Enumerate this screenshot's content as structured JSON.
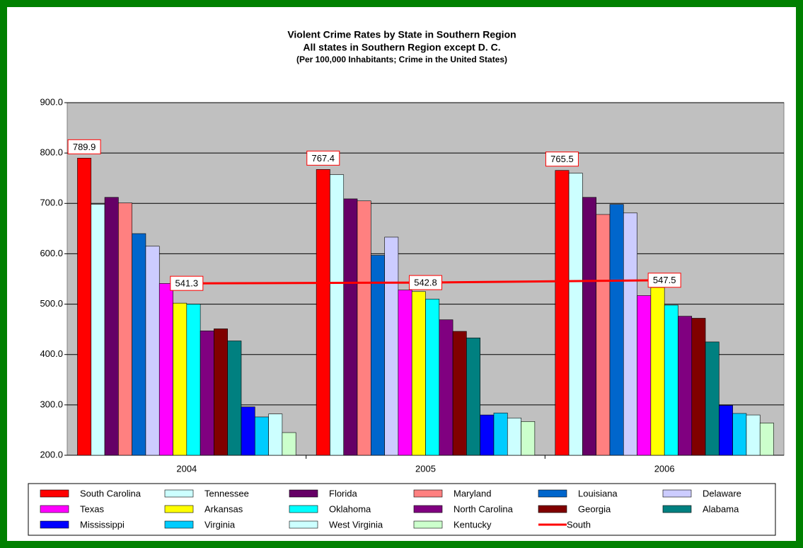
{
  "chart_data": {
    "type": "bar",
    "title": "Violent Crime Rates by State in Southern Region",
    "subtitle": "All states in Southern Region except D. C.",
    "note": "(Per 100,000 Inhabitants; Crime in the United States)",
    "categories": [
      "2004",
      "2005",
      "2006"
    ],
    "ylim": [
      200,
      900
    ],
    "yticks": [
      {
        "value": 200,
        "label": "200.0"
      },
      {
        "value": 300,
        "label": "300.0"
      },
      {
        "value": 400,
        "label": "400.0"
      },
      {
        "value": 500,
        "label": "500.0"
      },
      {
        "value": 600,
        "label": "600.0"
      },
      {
        "value": 700,
        "label": "700.0"
      },
      {
        "value": 800,
        "label": "800.0"
      },
      {
        "value": 900,
        "label": "900.0"
      }
    ],
    "grid": true,
    "legend": "bottom",
    "series": [
      {
        "name": "South Carolina",
        "color": "#ff0000",
        "values": [
          789.9,
          767.4,
          765.5
        ],
        "show_labels": true
      },
      {
        "name": "Tennessee",
        "color": "#ccffff",
        "values": [
          698,
          757,
          760
        ]
      },
      {
        "name": "Florida",
        "color": "#660066",
        "values": [
          712,
          709,
          712
        ]
      },
      {
        "name": "Maryland",
        "color": "#ff8080",
        "values": [
          701,
          705,
          678
        ]
      },
      {
        "name": "Louisiana",
        "color": "#0066cc",
        "values": [
          640,
          597,
          698
        ]
      },
      {
        "name": "Delaware",
        "color": "#ccccff",
        "values": [
          615,
          633,
          681
        ]
      },
      {
        "name": "Texas",
        "color": "#ff00ff",
        "values": [
          541,
          528,
          517
        ]
      },
      {
        "name": "Arkansas",
        "color": "#ffff00",
        "values": [
          502,
          525,
          533
        ]
      },
      {
        "name": "Oklahoma",
        "color": "#00ffff",
        "values": [
          500,
          510,
          498
        ]
      },
      {
        "name": "North Carolina",
        "color": "#800080",
        "values": [
          447,
          469,
          476
        ]
      },
      {
        "name": "Georgia",
        "color": "#800000",
        "values": [
          451,
          446,
          472
        ]
      },
      {
        "name": "Alabama",
        "color": "#008080",
        "values": [
          427,
          433,
          425
        ]
      },
      {
        "name": "Mississippi",
        "color": "#0000ff",
        "values": [
          296,
          280,
          299
        ]
      },
      {
        "name": "Virginia",
        "color": "#00ccff",
        "values": [
          276,
          284,
          283
        ]
      },
      {
        "name": "West Virginia",
        "color": "#ccffff",
        "values": [
          282,
          274,
          280
        ]
      },
      {
        "name": "Kentucky",
        "color": "#ccffcc",
        "values": [
          245,
          267,
          264
        ]
      },
      {
        "name": "South",
        "color": "#ff0000",
        "type": "line",
        "values": [
          541.3,
          542.8,
          547.5
        ],
        "show_labels": true
      }
    ]
  }
}
